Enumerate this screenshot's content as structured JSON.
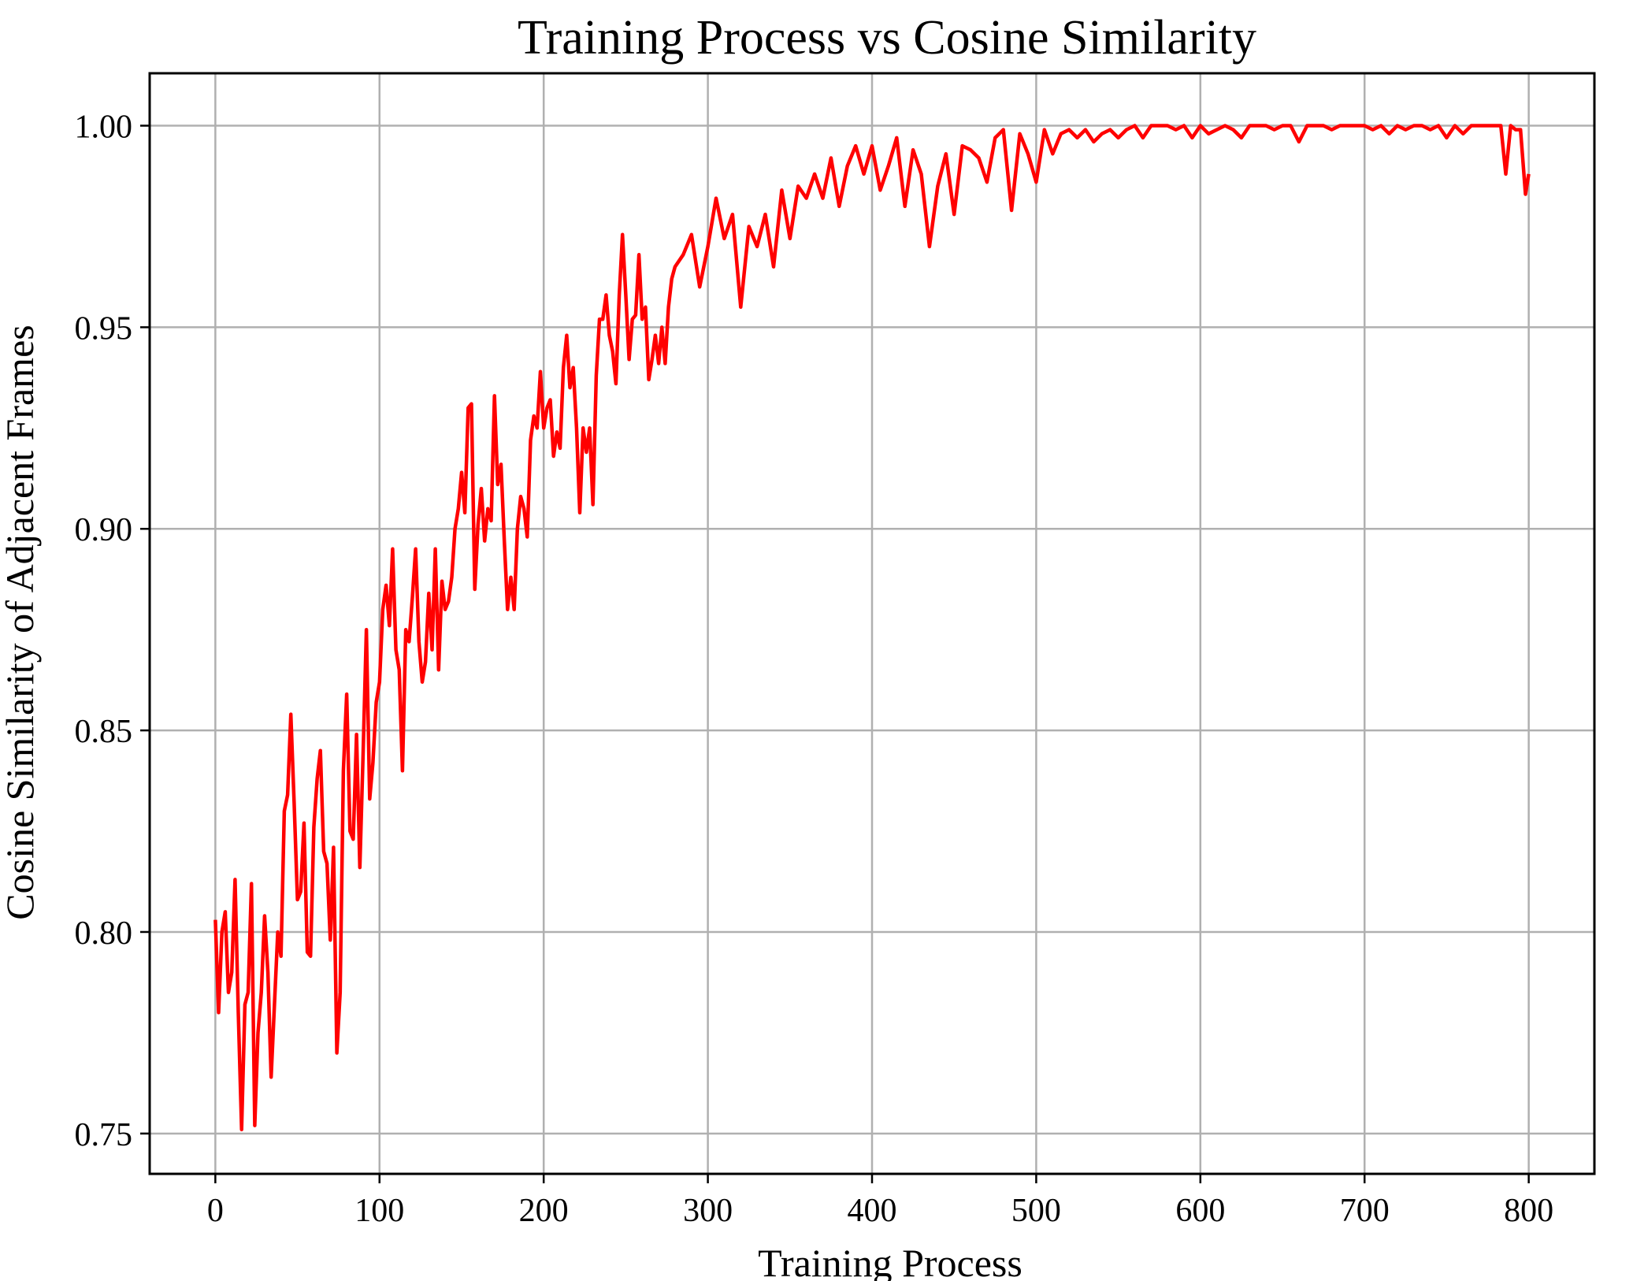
{
  "chart_data": {
    "type": "line",
    "title": "Training Process vs Cosine Similarity",
    "xlabel": "Training Process",
    "ylabel": "Cosine Similarity of Adjacent Frames",
    "xlim": [
      -40,
      840
    ],
    "ylim": [
      0.74,
      1.013
    ],
    "xticks": [
      0,
      100,
      200,
      300,
      400,
      500,
      600,
      700,
      800
    ],
    "yticks": [
      0.75,
      0.8,
      0.85,
      0.9,
      0.95,
      1.0
    ],
    "xtick_labels": [
      "0",
      "100",
      "200",
      "300",
      "400",
      "500",
      "600",
      "700",
      "800"
    ],
    "ytick_labels": [
      "0.75",
      "0.80",
      "0.85",
      "0.90",
      "0.95",
      "1.00"
    ],
    "grid": true,
    "legend": "none",
    "series": [
      {
        "color": "#ff0000",
        "x": [
          0,
          2,
          4,
          6,
          8,
          10,
          12,
          14,
          16,
          18,
          20,
          22,
          24,
          26,
          28,
          30,
          32,
          34,
          36,
          38,
          40,
          42,
          44,
          46,
          48,
          50,
          52,
          54,
          56,
          58,
          60,
          62,
          64,
          66,
          68,
          70,
          72,
          74,
          76,
          78,
          80,
          82,
          84,
          86,
          88,
          90,
          92,
          94,
          96,
          98,
          100,
          102,
          104,
          106,
          108,
          110,
          112,
          114,
          116,
          118,
          120,
          122,
          124,
          126,
          128,
          130,
          132,
          134,
          136,
          138,
          140,
          142,
          144,
          146,
          148,
          150,
          152,
          154,
          156,
          158,
          160,
          162,
          164,
          166,
          168,
          170,
          172,
          174,
          176,
          178,
          180,
          182,
          184,
          186,
          188,
          190,
          192,
          194,
          196,
          198,
          200,
          202,
          204,
          206,
          208,
          210,
          212,
          214,
          216,
          218,
          220,
          222,
          224,
          226,
          228,
          230,
          232,
          234,
          236,
          238,
          240,
          242,
          244,
          246,
          248,
          250,
          252,
          254,
          256,
          258,
          260,
          262,
          264,
          266,
          268,
          270,
          272,
          274,
          276,
          278,
          280,
          285,
          290,
          295,
          300,
          305,
          310,
          315,
          320,
          325,
          330,
          335,
          340,
          345,
          350,
          355,
          360,
          365,
          370,
          375,
          380,
          385,
          390,
          395,
          400,
          405,
          410,
          415,
          420,
          425,
          430,
          435,
          440,
          445,
          450,
          455,
          460,
          465,
          470,
          475,
          480,
          485,
          490,
          495,
          500,
          505,
          510,
          515,
          520,
          525,
          530,
          535,
          540,
          545,
          550,
          555,
          560,
          565,
          570,
          575,
          580,
          585,
          590,
          595,
          600,
          605,
          610,
          615,
          620,
          625,
          630,
          635,
          640,
          645,
          650,
          655,
          660,
          665,
          670,
          675,
          680,
          685,
          690,
          695,
          700,
          705,
          710,
          715,
          720,
          725,
          730,
          735,
          740,
          745,
          750,
          755,
          760,
          765,
          770,
          775,
          780,
          783,
          786,
          789,
          792,
          795,
          798,
          800
        ],
        "values": [
          0.803,
          0.78,
          0.8,
          0.805,
          0.785,
          0.79,
          0.813,
          0.78,
          0.751,
          0.782,
          0.785,
          0.812,
          0.752,
          0.775,
          0.785,
          0.804,
          0.79,
          0.764,
          0.782,
          0.8,
          0.794,
          0.83,
          0.834,
          0.854,
          0.832,
          0.808,
          0.81,
          0.827,
          0.795,
          0.794,
          0.826,
          0.838,
          0.845,
          0.82,
          0.817,
          0.798,
          0.821,
          0.77,
          0.785,
          0.84,
          0.859,
          0.825,
          0.823,
          0.849,
          0.816,
          0.844,
          0.875,
          0.833,
          0.842,
          0.857,
          0.862,
          0.88,
          0.886,
          0.876,
          0.895,
          0.87,
          0.865,
          0.84,
          0.875,
          0.872,
          0.883,
          0.895,
          0.872,
          0.862,
          0.867,
          0.884,
          0.87,
          0.895,
          0.865,
          0.887,
          0.88,
          0.882,
          0.888,
          0.9,
          0.905,
          0.914,
          0.904,
          0.93,
          0.931,
          0.885,
          0.901,
          0.91,
          0.897,
          0.905,
          0.902,
          0.933,
          0.911,
          0.916,
          0.897,
          0.88,
          0.888,
          0.88,
          0.9,
          0.908,
          0.905,
          0.898,
          0.922,
          0.928,
          0.925,
          0.939,
          0.925,
          0.93,
          0.932,
          0.918,
          0.924,
          0.92,
          0.94,
          0.948,
          0.935,
          0.94,
          0.925,
          0.904,
          0.925,
          0.919,
          0.925,
          0.906,
          0.938,
          0.952,
          0.952,
          0.958,
          0.948,
          0.944,
          0.936,
          0.958,
          0.973,
          0.958,
          0.942,
          0.952,
          0.953,
          0.968,
          0.952,
          0.955,
          0.937,
          0.942,
          0.948,
          0.941,
          0.95,
          0.941,
          0.955,
          0.962,
          0.965,
          0.968,
          0.973,
          0.96,
          0.97,
          0.982,
          0.972,
          0.978,
          0.955,
          0.975,
          0.97,
          0.978,
          0.965,
          0.984,
          0.972,
          0.985,
          0.982,
          0.988,
          0.982,
          0.992,
          0.98,
          0.99,
          0.995,
          0.988,
          0.995,
          0.984,
          0.99,
          0.997,
          0.98,
          0.994,
          0.988,
          0.97,
          0.985,
          0.993,
          0.978,
          0.995,
          0.994,
          0.992,
          0.986,
          0.997,
          0.999,
          0.979,
          0.998,
          0.993,
          0.986,
          0.999,
          0.993,
          0.998,
          0.999,
          0.997,
          0.999,
          0.996,
          0.998,
          0.999,
          0.997,
          0.999,
          1.0,
          0.997,
          1.0,
          1.0,
          1.0,
          0.999,
          1.0,
          0.997,
          1.0,
          0.998,
          0.999,
          1.0,
          0.999,
          0.997,
          1.0,
          1.0,
          1.0,
          0.999,
          1.0,
          1.0,
          0.996,
          1.0,
          1.0,
          1.0,
          0.999,
          1.0,
          1.0,
          1.0,
          1.0,
          0.999,
          1.0,
          0.998,
          1.0,
          0.999,
          1.0,
          1.0,
          0.999,
          1.0,
          0.997,
          1.0,
          0.998,
          1.0,
          1.0,
          1.0,
          1.0,
          1.0,
          0.988,
          1.0,
          0.999,
          0.999,
          0.983,
          0.988
        ]
      }
    ]
  }
}
